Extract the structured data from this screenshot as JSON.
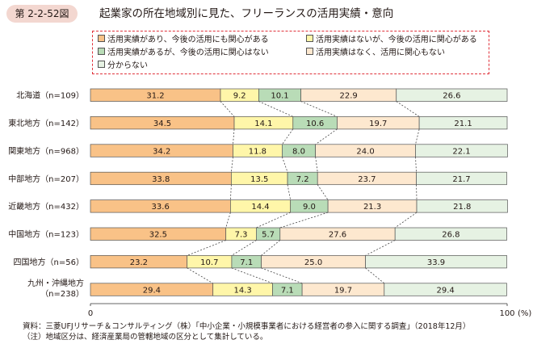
{
  "figure": {
    "number": "第 2-2-52図",
    "title": "起業家の所在地域別に見た、フリーランスの活用実績・意向"
  },
  "colors": {
    "s1": "#f9c287",
    "s2": "#fff6a9",
    "s3": "#b9dcb7",
    "s4": "#fde8cf",
    "s5": "#e6f2e3",
    "stroke": "#555555",
    "legend_border": "#e0313a"
  },
  "chart_data": {
    "type": "bar",
    "orientation": "horizontal",
    "stacked": true,
    "categories": [
      "北海道（n=109）",
      "東北地方（n=142）",
      "関東地方（n=968）",
      "中部地方（n=207）",
      "近畿地方（n=432）",
      "中国地方（n=123）",
      "四国地方（n=56）",
      "九州・沖縄地方（n=238）"
    ],
    "series": [
      {
        "name": "活用実績があり、今後の活用にも関心がある",
        "values": [
          31.2,
          34.5,
          34.2,
          33.8,
          33.6,
          32.5,
          23.2,
          29.4
        ]
      },
      {
        "name": "活用実績はないが、今後の活用に関心がある",
        "values": [
          9.2,
          14.1,
          11.8,
          13.5,
          14.4,
          7.3,
          10.7,
          14.3
        ]
      },
      {
        "name": "活用実績があるが、今後の活用に関心はない",
        "values": [
          10.1,
          10.6,
          8.0,
          7.2,
          9.0,
          5.7,
          7.1,
          7.1
        ]
      },
      {
        "name": "活用実績はなく、活用に関心もない",
        "values": [
          22.9,
          19.7,
          24.0,
          23.7,
          21.3,
          27.6,
          25.0,
          19.7
        ]
      },
      {
        "name": "分からない",
        "values": [
          26.6,
          21.1,
          22.1,
          21.7,
          21.8,
          26.8,
          33.9,
          29.4
        ]
      }
    ],
    "xlim": [
      0,
      100
    ],
    "x_ticks": [
      "0",
      "100"
    ],
    "x_unit": "(%)",
    "grid": false,
    "legend_position": "top"
  },
  "footnotes": {
    "source": "資料：三菱UFJリサーチ＆コンサルティング（株）「中小企業・小規模事業者における経営者の参入に関する調査」（2018年12月）",
    "note": "（注）地域区分は、経済産業局の管轄地域の区分として集計している。"
  }
}
